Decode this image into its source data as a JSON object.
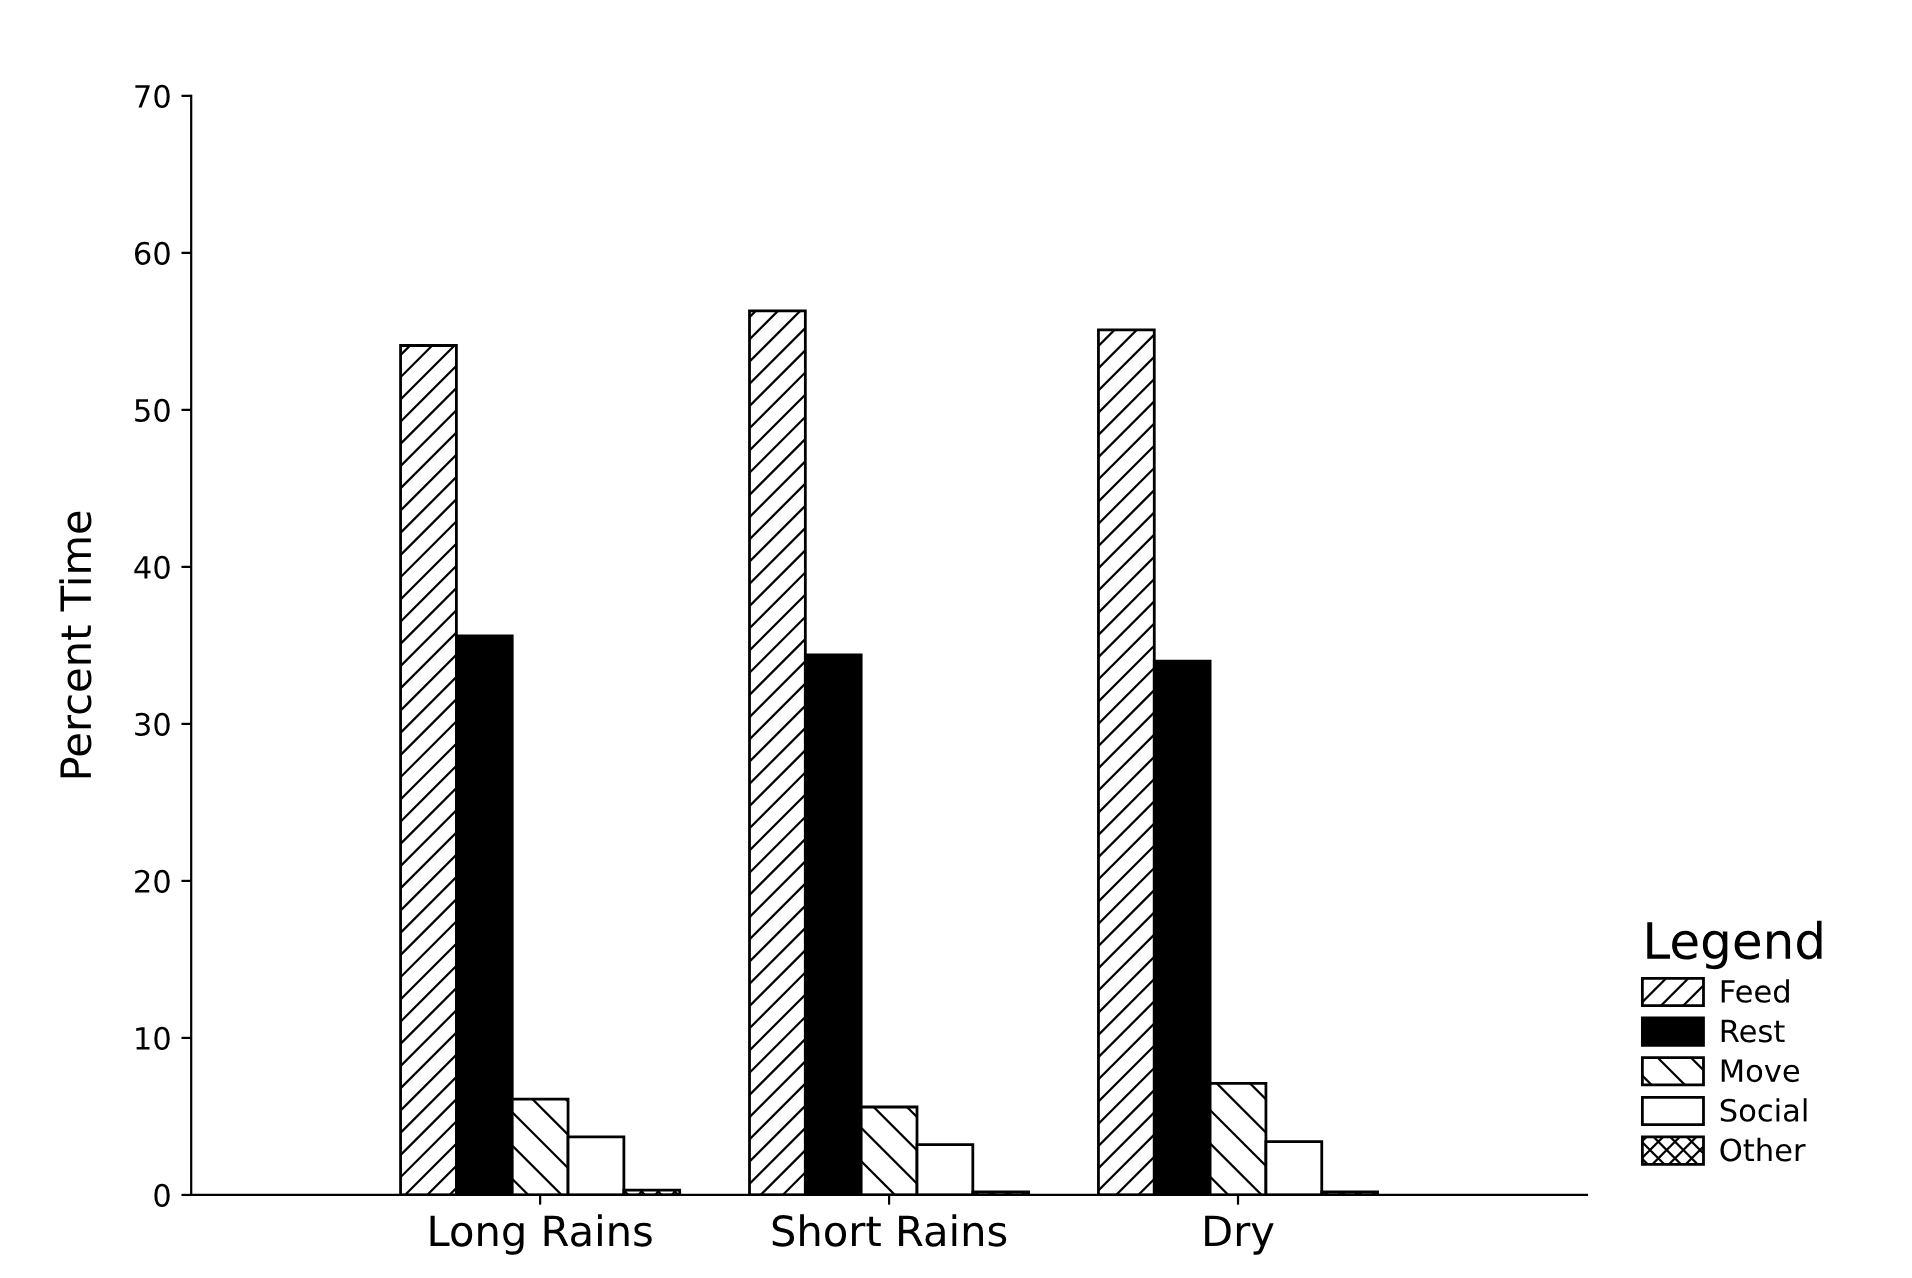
{
  "chart_data": {
    "type": "bar",
    "ylabel": "Percent Time",
    "legend_title": "Legend",
    "legend": "right",
    "categories": [
      "Long Rains",
      "Short Rains",
      "Dry"
    ],
    "ylim": [
      0,
      70
    ],
    "yticks": [
      0,
      10,
      20,
      30,
      40,
      50,
      60,
      70
    ],
    "grid": false,
    "series": [
      {
        "name": "Feed",
        "color": "#000000",
        "values": [
          54.1,
          56.3,
          55.1
        ]
      },
      {
        "name": "Rest",
        "color": "#000000",
        "values": [
          35.6,
          34.4,
          34.0
        ]
      },
      {
        "name": "Move",
        "color": "#000000",
        "values": [
          6.1,
          5.6,
          7.1
        ]
      },
      {
        "name": "Social",
        "color": "#ffffff",
        "values": [
          3.7,
          3.2,
          3.4
        ]
      },
      {
        "name": "Other",
        "color": "#000000",
        "values": [
          0.3,
          0.2,
          0.2
        ]
      }
    ]
  }
}
